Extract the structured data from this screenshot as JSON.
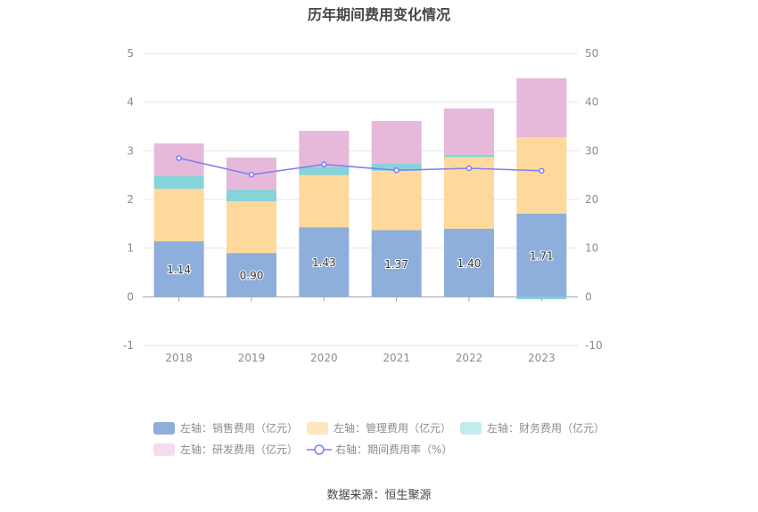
{
  "chart_data": {
    "type": "bar",
    "title": "历年期间费用变化情况",
    "categories": [
      "2018",
      "2019",
      "2020",
      "2021",
      "2022",
      "2023"
    ],
    "left_axis": {
      "ylim": [
        -1,
        5
      ],
      "ticks": [
        "-1",
        "0",
        "1",
        "2",
        "3",
        "4",
        "5"
      ]
    },
    "right_axis": {
      "ylim": [
        -10,
        50
      ],
      "ticks": [
        "-10",
        "0",
        "10",
        "20",
        "30",
        "40",
        "50"
      ]
    },
    "series": [
      {
        "name": "左轴：销售费用（亿元）",
        "type": "bar",
        "color": "#8eaedb",
        "values": [
          1.14,
          0.9,
          1.43,
          1.37,
          1.4,
          1.71
        ],
        "labels": [
          "1.14",
          "0.90",
          "1.43",
          "1.37",
          "1.40",
          "1.71"
        ]
      },
      {
        "name": "左轴：管理费用（亿元）",
        "type": "bar",
        "color": "#ffd99b",
        "values": [
          1.08,
          1.06,
          1.07,
          1.22,
          1.47,
          1.57
        ]
      },
      {
        "name": "左轴：财务费用（亿元）",
        "type": "bar",
        "color": "#86d3d9",
        "values": [
          0.27,
          0.24,
          0.17,
          0.15,
          0.05,
          -0.05
        ]
      },
      {
        "name": "左轴：研发费用（亿元）",
        "type": "bar",
        "color": "#e6b8d9",
        "values": [
          0.66,
          0.66,
          0.74,
          0.87,
          0.95,
          1.21
        ]
      },
      {
        "name": "右轴：期间费用率（%）",
        "type": "line",
        "color": "#7b7ef5",
        "values": [
          28.5,
          25.1,
          27.2,
          26.0,
          26.4,
          25.9
        ]
      }
    ],
    "legend": [
      {
        "label": "左轴：销售费用（亿元）",
        "color": "#8eaedb"
      },
      {
        "label": "左轴：管理费用（亿元）",
        "color": "#ffe6bf"
      },
      {
        "label": "左轴：财务费用（亿元）",
        "color": "#c3ebee"
      },
      {
        "label": "左轴：研发费用（亿元）",
        "color": "#f5dcec"
      },
      {
        "label": "右轴：期间费用率（%）",
        "color": "#7b7ef5"
      }
    ]
  },
  "source": "数据来源：恒生聚源"
}
